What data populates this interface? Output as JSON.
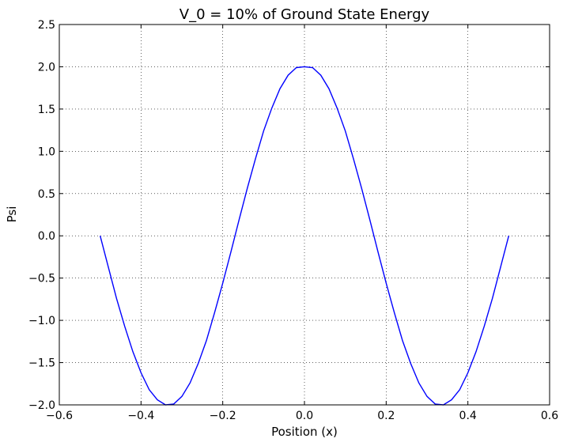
{
  "chart_data": {
    "type": "line",
    "title": "V_0 = 10% of Ground State Energy",
    "xlabel": "Position (x)",
    "ylabel": "Psi",
    "xlim": [
      -0.6,
      0.6
    ],
    "ylim": [
      -2.0,
      2.5
    ],
    "grid": true,
    "x_ticks": [
      -0.6,
      -0.4,
      -0.2,
      0.0,
      0.2,
      0.4,
      0.6
    ],
    "x_tick_labels": [
      "−0.6",
      "−0.4",
      "−0.2",
      "0.0",
      "0.2",
      "0.4",
      "0.6"
    ],
    "y_ticks": [
      -2.0,
      -1.5,
      -1.0,
      -0.5,
      0.0,
      0.5,
      1.0,
      1.5,
      2.0,
      2.5
    ],
    "y_tick_labels": [
      "−2.0",
      "−1.5",
      "−1.0",
      "−0.5",
      "0.0",
      "0.5",
      "1.0",
      "1.5",
      "2.0",
      "2.5"
    ],
    "series": [
      {
        "color": "#0000ff",
        "x": [
          -0.5,
          -0.48,
          -0.46,
          -0.44,
          -0.42,
          -0.4,
          -0.38,
          -0.36,
          -0.34,
          -0.32,
          -0.3,
          -0.28,
          -0.26,
          -0.24,
          -0.22,
          -0.2,
          -0.18,
          -0.16,
          -0.14,
          -0.12,
          -0.1,
          -0.08,
          -0.06,
          -0.04,
          -0.02,
          0.0,
          0.02,
          0.04,
          0.06,
          0.08,
          0.1,
          0.12,
          0.14,
          0.16,
          0.18,
          0.2,
          0.22,
          0.24,
          0.26,
          0.28,
          0.3,
          0.32,
          0.34,
          0.36,
          0.38,
          0.4,
          0.42,
          0.44,
          0.46,
          0.48,
          0.5
        ],
        "y": [
          0.0,
          -0.37,
          -0.74,
          -1.07,
          -1.37,
          -1.62,
          -1.82,
          -1.94,
          -2.0,
          -1.99,
          -1.9,
          -1.74,
          -1.51,
          -1.24,
          -0.91,
          -0.56,
          -0.19,
          0.19,
          0.56,
          0.91,
          1.24,
          1.51,
          1.74,
          1.9,
          1.99,
          2.0,
          1.99,
          1.9,
          1.74,
          1.51,
          1.24,
          0.91,
          0.56,
          0.19,
          -0.19,
          -0.56,
          -0.91,
          -1.24,
          -1.51,
          -1.74,
          -1.9,
          -1.99,
          -2.0,
          -1.94,
          -1.82,
          -1.62,
          -1.37,
          -1.07,
          -0.74,
          -0.37,
          0.0
        ]
      }
    ]
  }
}
